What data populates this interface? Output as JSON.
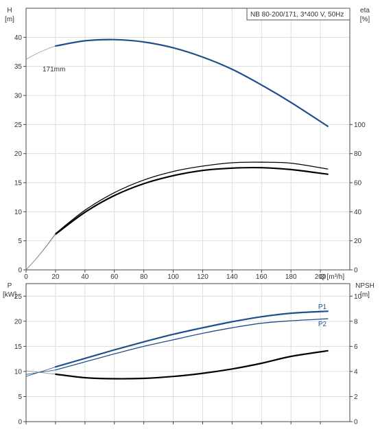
{
  "chart_data": [
    {
      "type": "line",
      "title": "NB 80-200/171, 3*400 V, 50Hz",
      "xlabel": "Q [m³/h]",
      "ylabel_left": "H",
      "ylabel_left_unit": "[m]",
      "ylabel_right": "eta",
      "ylabel_right_unit": "[%]",
      "xlim": [
        0,
        220
      ],
      "ylim_left": [
        0,
        45
      ],
      "ylim_right_eta": [
        0,
        100
      ],
      "x_ticks": [
        0,
        20,
        40,
        60,
        80,
        100,
        120,
        140,
        160,
        180,
        200
      ],
      "y_ticks_left": [
        0,
        5,
        10,
        15,
        20,
        25,
        30,
        35,
        40
      ],
      "y_ticks_right": [
        0,
        20,
        40,
        60,
        80,
        100
      ],
      "grid": true,
      "annotation": "171mm",
      "series": [
        {
          "name": "",
          "axis": "left",
          "color": "#1f4e8c",
          "x": [
            20,
            40,
            60,
            80,
            100,
            120,
            140,
            160,
            180,
            205
          ],
          "y": [
            38.5,
            39.4,
            39.6,
            39.2,
            38.2,
            36.6,
            34.5,
            31.8,
            28.8,
            24.7
          ]
        },
        {
          "name": "",
          "axis": "right",
          "color": "#000000",
          "x": [
            20,
            40,
            60,
            80,
            100,
            120,
            140,
            160,
            180,
            205
          ],
          "y": [
            24.5,
            39.6,
            51.1,
            59.3,
            64.8,
            68.4,
            70.0,
            70.3,
            69.0,
            65.8
          ]
        },
        {
          "name": "",
          "axis": "right",
          "color": "#000000",
          "x": [
            20,
            40,
            60,
            80,
            100,
            120,
            140,
            160,
            180,
            205
          ],
          "y": [
            25.0,
            41.0,
            53.1,
            61.8,
            67.7,
            71.4,
            73.7,
            74.1,
            73.4,
            69.4
          ]
        }
      ]
    },
    {
      "type": "line",
      "title": "",
      "xlabel": "",
      "ylabel_left": "P",
      "ylabel_left_unit": "[kW]",
      "ylabel_right": "NPSH",
      "ylabel_right_unit": "[m]",
      "xlim": [
        0,
        220
      ],
      "ylim_left": [
        0,
        27.5
      ],
      "ylim_right": [
        0,
        11
      ],
      "y_ticks_left": [
        0,
        5,
        10,
        15,
        20,
        25
      ],
      "y_ticks_right": [
        0,
        2,
        4,
        6,
        8,
        10
      ],
      "grid": true,
      "series": [
        {
          "name": "P1",
          "axis": "left",
          "color": "#1f4e8c",
          "x": [
            20,
            40,
            60,
            80,
            100,
            120,
            140,
            160,
            180,
            205
          ],
          "y": [
            10.9,
            12.6,
            14.3,
            15.9,
            17.4,
            18.7,
            19.9,
            20.9,
            21.6,
            22.0
          ]
        },
        {
          "name": "P2",
          "axis": "left",
          "color": "#1f4e8c",
          "x": [
            20,
            40,
            60,
            80,
            100,
            120,
            140,
            160,
            180,
            205
          ],
          "y": [
            10.3,
            11.9,
            13.5,
            15.0,
            16.3,
            17.6,
            18.7,
            19.6,
            20.1,
            20.5
          ]
        },
        {
          "name": "",
          "axis": "right",
          "color": "#000000",
          "x": [
            20,
            40,
            60,
            80,
            100,
            120,
            140,
            160,
            180,
            205
          ],
          "y": [
            3.78,
            3.5,
            3.42,
            3.45,
            3.6,
            3.85,
            4.2,
            4.65,
            5.2,
            5.65
          ]
        }
      ]
    }
  ]
}
